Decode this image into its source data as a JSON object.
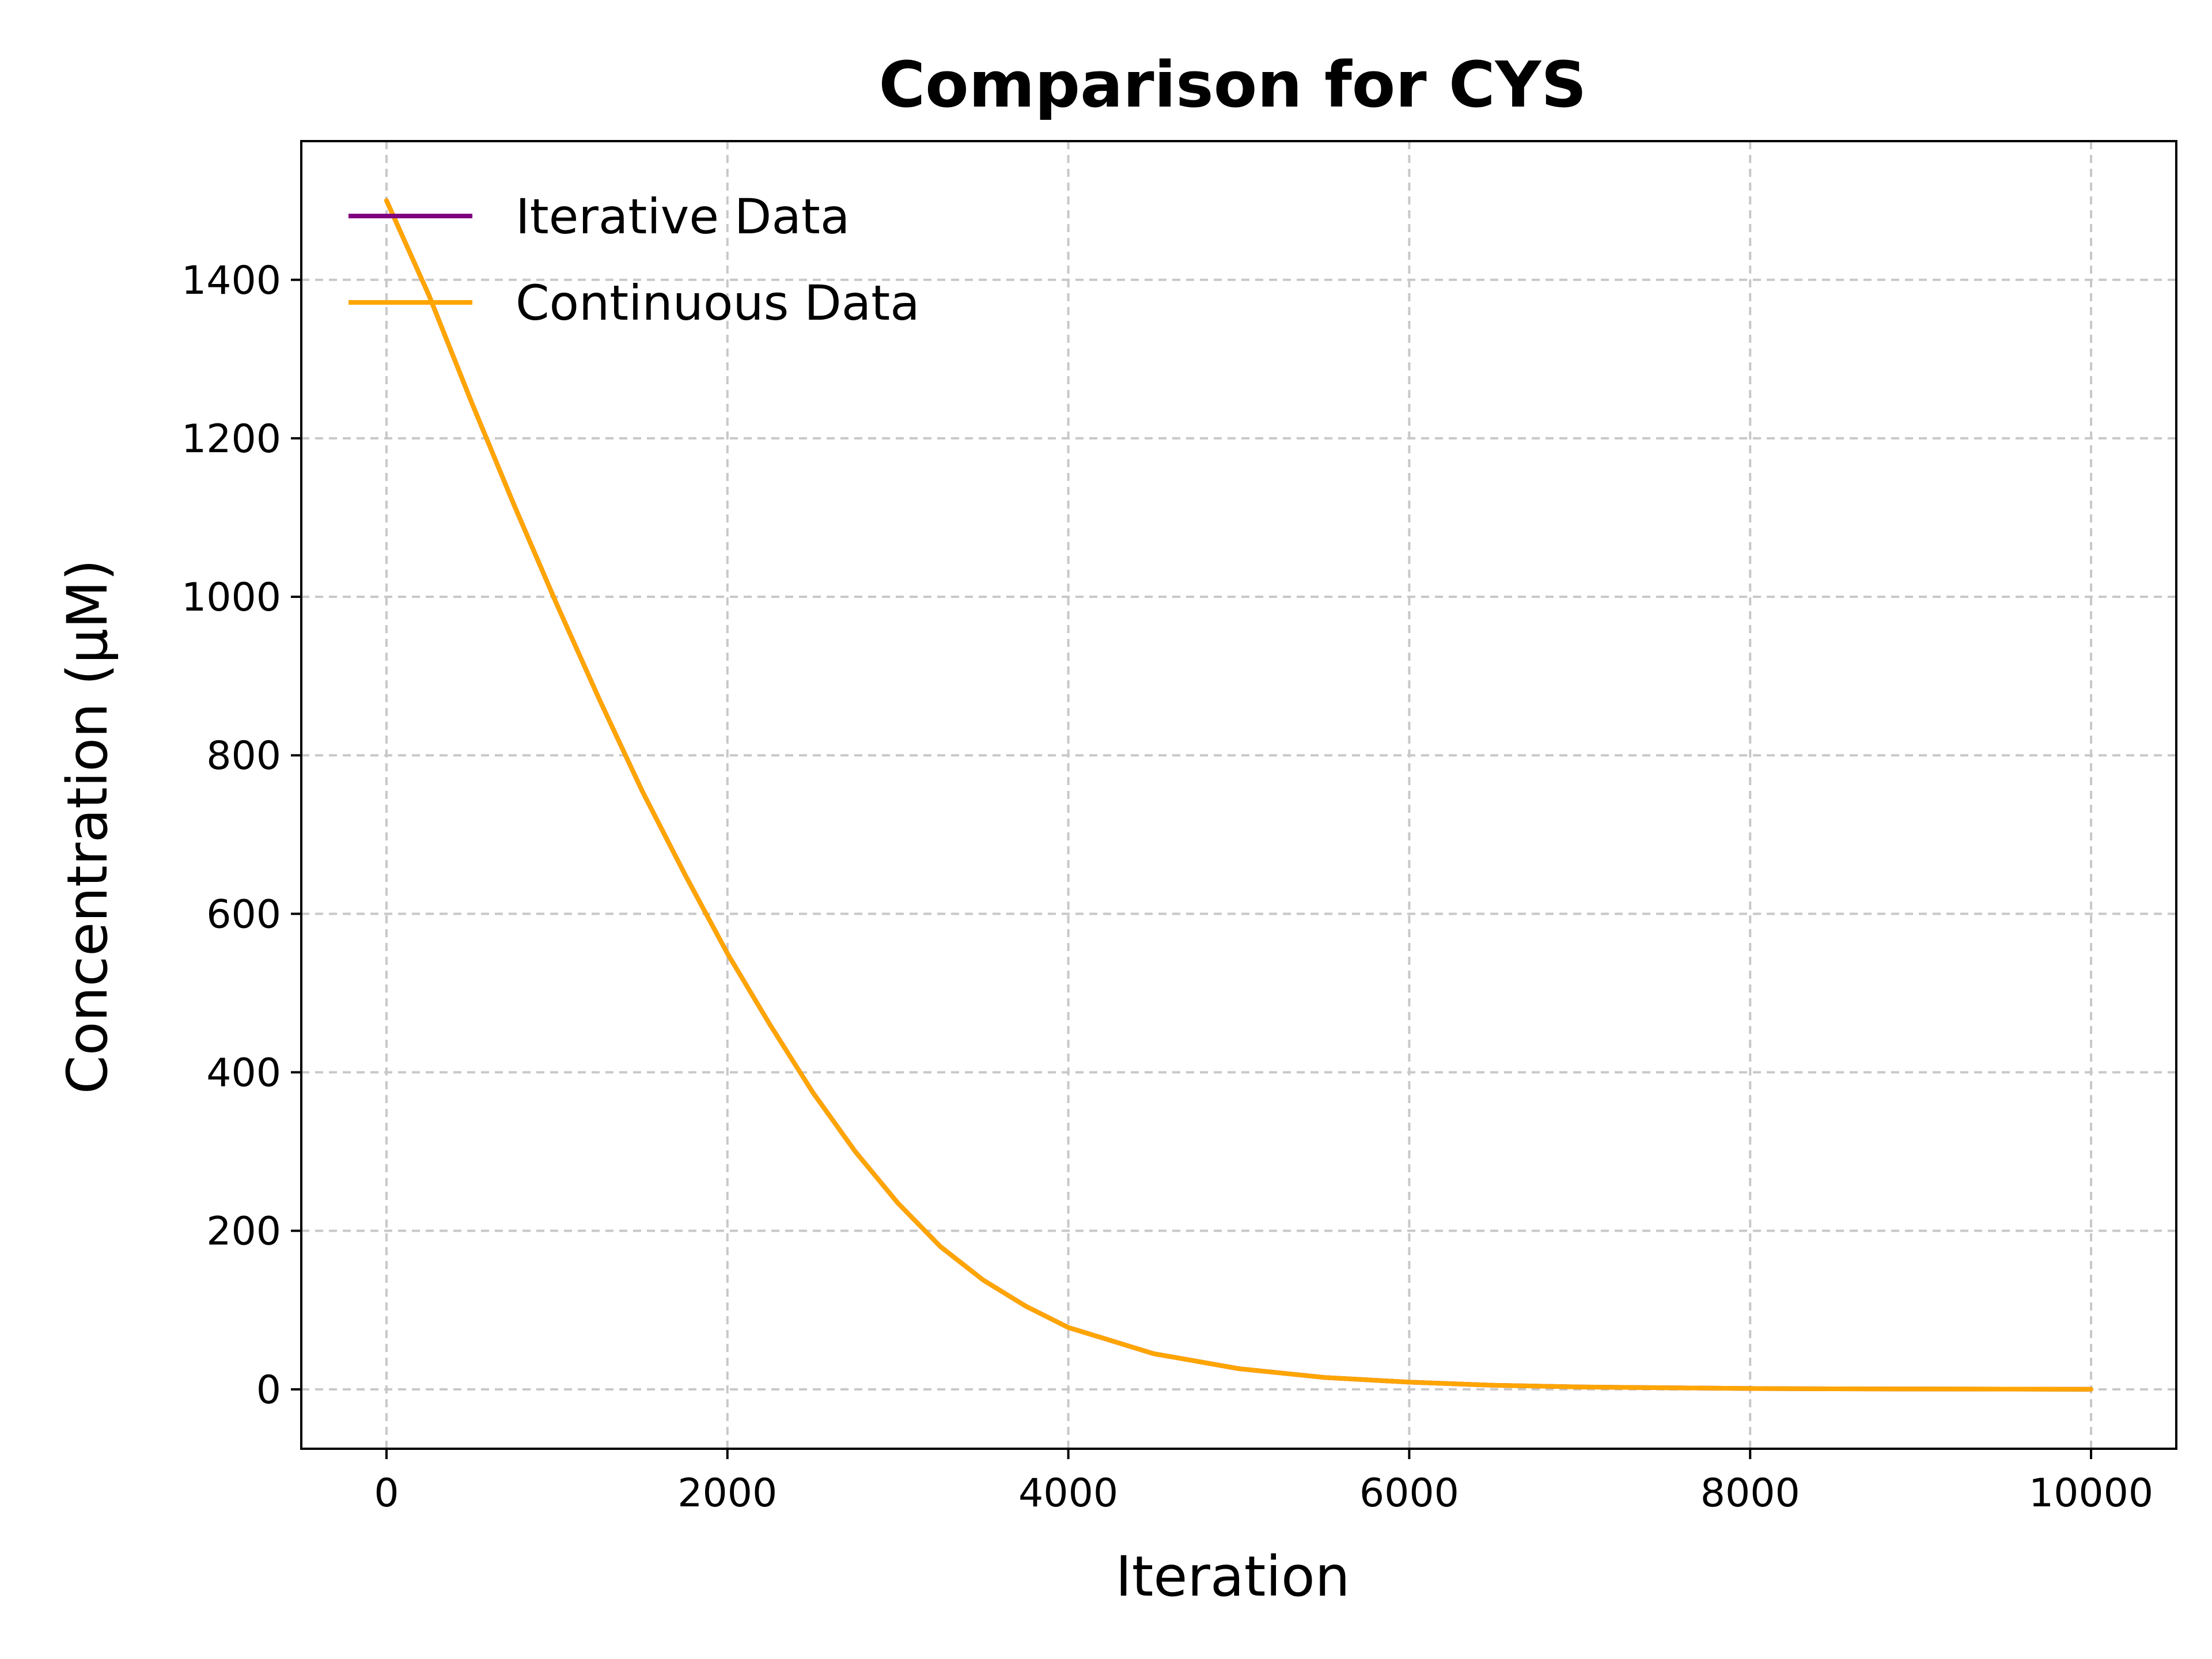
{
  "chart_data": {
    "type": "line",
    "title": "Comparison for CYS",
    "xlabel": "Iteration",
    "ylabel": "Concentration (μM)",
    "xlim": [
      -500,
      10500
    ],
    "ylim": [
      -75,
      1575
    ],
    "xticks": [
      0,
      2000,
      4000,
      6000,
      8000,
      10000
    ],
    "yticks": [
      0,
      200,
      400,
      600,
      800,
      1000,
      1200,
      1400
    ],
    "grid": true,
    "legend_position": "upper-left",
    "series": [
      {
        "name": "Iterative Data",
        "color": "#800080",
        "x": [
          0,
          250,
          500,
          750,
          1000,
          1250,
          1500,
          1750,
          2000,
          2250,
          2500,
          2750,
          3000,
          3250,
          3500,
          3750,
          4000,
          4500,
          5000,
          5500,
          6000,
          6500,
          7000,
          7500,
          8000,
          8500,
          9000,
          9500,
          10000
        ],
        "y": [
          1500,
          1380,
          1245,
          1115,
          990,
          870,
          755,
          650,
          550,
          460,
          375,
          300,
          235,
          180,
          138,
          105,
          78,
          45,
          26,
          15,
          9,
          5,
          3,
          2,
          1,
          0.6,
          0.4,
          0.2,
          0.1
        ]
      },
      {
        "name": "Continuous Data",
        "color": "#FFA500",
        "x": [
          0,
          250,
          500,
          750,
          1000,
          1250,
          1500,
          1750,
          2000,
          2250,
          2500,
          2750,
          3000,
          3250,
          3500,
          3750,
          4000,
          4500,
          5000,
          5500,
          6000,
          6500,
          7000,
          7500,
          8000,
          8500,
          9000,
          9500,
          10000
        ],
        "y": [
          1500,
          1380,
          1245,
          1115,
          990,
          870,
          755,
          650,
          550,
          460,
          375,
          300,
          235,
          180,
          138,
          105,
          78,
          45,
          26,
          15,
          9,
          5,
          3,
          2,
          1,
          0.6,
          0.4,
          0.2,
          0.1
        ]
      }
    ]
  }
}
